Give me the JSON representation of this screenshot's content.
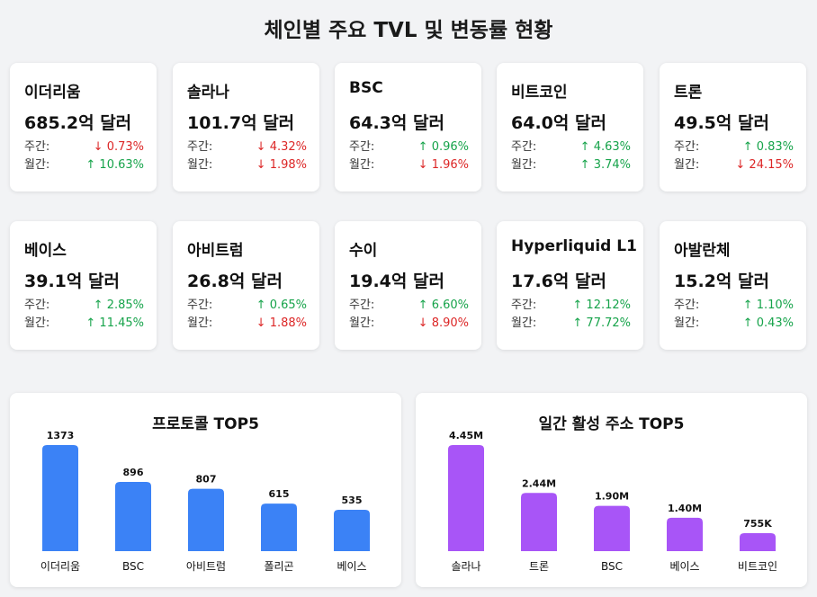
{
  "title": "체인별 주요 TVL 및 변동률 현황",
  "labels": {
    "weekly": "주간:",
    "monthly": "월간:"
  },
  "chains": [
    {
      "name": "이더리움",
      "tvl": "685.2억 달러",
      "weekly": {
        "dir": "down",
        "text": "↓ 0.73%"
      },
      "monthly": {
        "dir": "up",
        "text": "↑ 10.63%"
      }
    },
    {
      "name": "솔라나",
      "tvl": "101.7억 달러",
      "weekly": {
        "dir": "down",
        "text": "↓ 4.32%"
      },
      "monthly": {
        "dir": "down",
        "text": "↓ 1.98%"
      }
    },
    {
      "name": "BSC",
      "tvl": "64.3억 달러",
      "weekly": {
        "dir": "up",
        "text": "↑ 0.96%"
      },
      "monthly": {
        "dir": "down",
        "text": "↓ 1.96%"
      }
    },
    {
      "name": "비트코인",
      "tvl": "64.0억 달러",
      "weekly": {
        "dir": "up",
        "text": "↑ 4.63%"
      },
      "monthly": {
        "dir": "up",
        "text": "↑ 3.74%"
      }
    },
    {
      "name": "트론",
      "tvl": "49.5억 달러",
      "weekly": {
        "dir": "up",
        "text": "↑ 0.83%"
      },
      "monthly": {
        "dir": "down",
        "text": "↓ 24.15%"
      }
    },
    {
      "name": "베이스",
      "tvl": "39.1억 달러",
      "weekly": {
        "dir": "up",
        "text": "↑ 2.85%"
      },
      "monthly": {
        "dir": "up",
        "text": "↑ 11.45%"
      }
    },
    {
      "name": "아비트럼",
      "tvl": "26.8억 달러",
      "weekly": {
        "dir": "up",
        "text": "↑ 0.65%"
      },
      "monthly": {
        "dir": "down",
        "text": "↓ 1.88%"
      }
    },
    {
      "name": "수이",
      "tvl": "19.4억 달러",
      "weekly": {
        "dir": "up",
        "text": "↑ 6.60%"
      },
      "monthly": {
        "dir": "down",
        "text": "↓ 8.90%"
      }
    },
    {
      "name": "Hyperliquid L1",
      "tvl": "17.6억 달러",
      "weekly": {
        "dir": "up",
        "text": "↑ 12.12%"
      },
      "monthly": {
        "dir": "up",
        "text": "↑ 77.72%"
      }
    },
    {
      "name": "아발란체",
      "tvl": "15.2억 달러",
      "weekly": {
        "dir": "up",
        "text": "↑ 1.10%"
      },
      "monthly": {
        "dir": "up",
        "text": "↑ 0.43%"
      }
    }
  ],
  "colors": {
    "up": "#16a34a",
    "down": "#dc2626"
  },
  "chart_data": [
    {
      "type": "bar",
      "title": "프로토콜 TOP5",
      "categories": [
        "이더리움",
        "BSC",
        "아비트럼",
        "폴리곤",
        "베이스"
      ],
      "values": [
        1373,
        896,
        807,
        615,
        535
      ],
      "value_labels": [
        "1373",
        "896",
        "807",
        "615",
        "535"
      ],
      "color": "#3b82f6",
      "ylim": [
        0,
        1373
      ]
    },
    {
      "type": "bar",
      "title": "일간 활성 주소 TOP5",
      "categories": [
        "솔라나",
        "트론",
        "BSC",
        "베이스",
        "비트코인"
      ],
      "values": [
        4.45,
        2.44,
        1.9,
        1.4,
        0.755
      ],
      "value_labels": [
        "4.45M",
        "2.44M",
        "1.90M",
        "1.40M",
        "755K"
      ],
      "color": "#a855f7",
      "ylim": [
        0,
        4.45
      ]
    }
  ]
}
